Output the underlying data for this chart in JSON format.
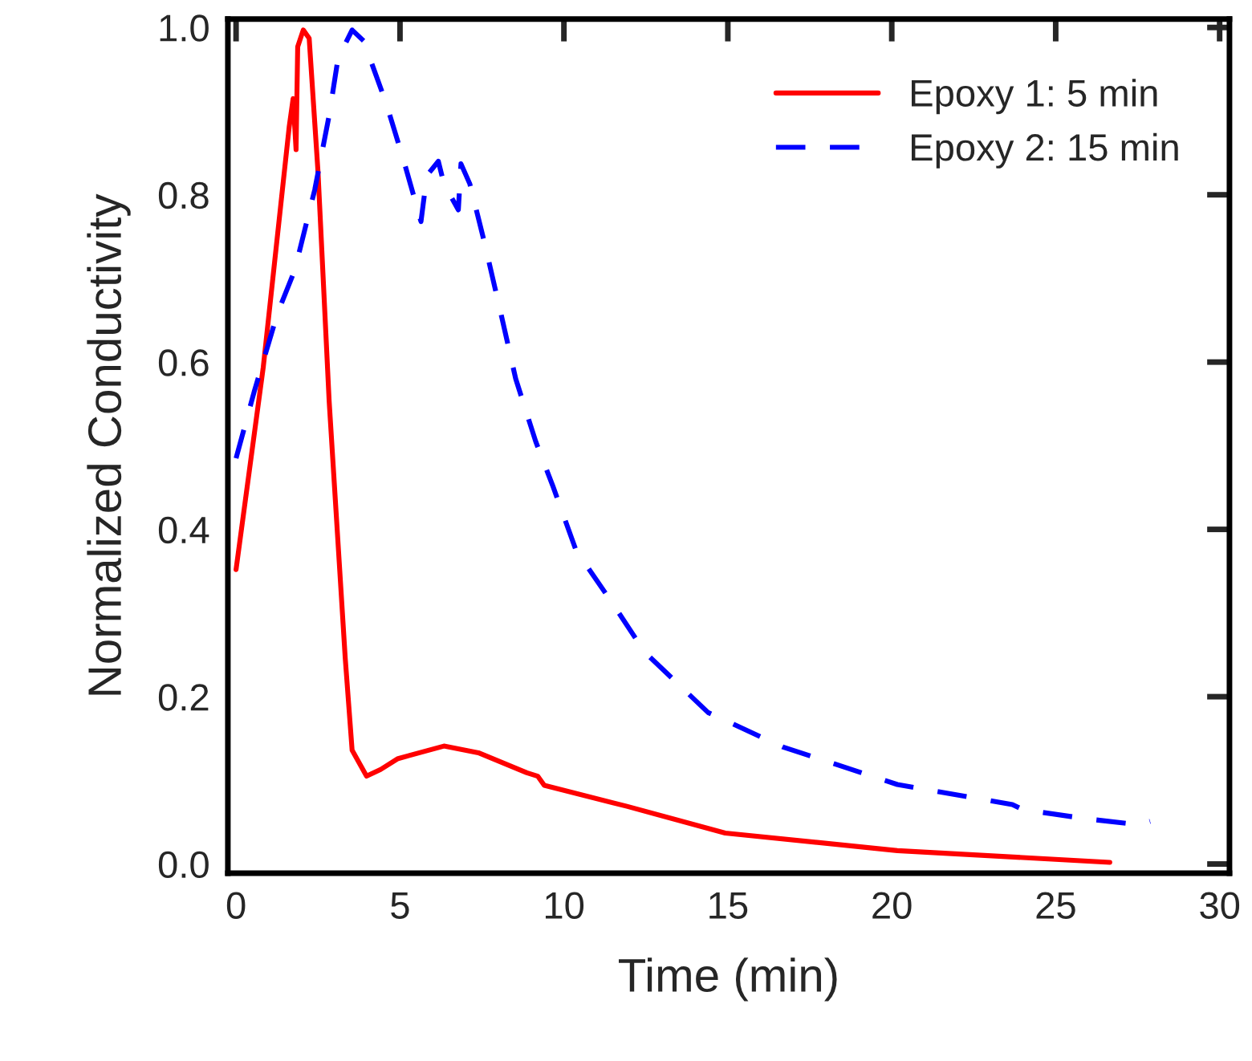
{
  "chart_data": {
    "type": "line",
    "xlabel": "Time (min)",
    "ylabel": "Normalized Conductivity",
    "xlim": [
      -0.25,
      30.3
    ],
    "ylim": [
      -0.011,
      1.01
    ],
    "xticks": [
      0,
      5,
      10,
      15,
      20,
      25,
      30
    ],
    "yticks": [
      {
        "value": 0.0,
        "label": "0.0"
      },
      0.2,
      0.4,
      0.6,
      0.8,
      {
        "value": 1.0,
        "label": "1.0"
      }
    ],
    "grid": false,
    "legend": "top right",
    "marker": "none",
    "series": [
      {
        "name": "Epoxy 1: 5 min",
        "color": "#ff0000",
        "line_style": "solid",
        "x": [
          0,
          0.83,
          1.62,
          1.74,
          1.83,
          1.88,
          2.05,
          2.23,
          2.5,
          2.84,
          3.33,
          3.54,
          3.98,
          4.41,
          4.94,
          6.34,
          7.39,
          8.87,
          9.2,
          9.4,
          11.92,
          14.92,
          20.17,
          26.65
        ],
        "values": [
          0.352,
          0.594,
          0.881,
          0.915,
          0.854,
          0.977,
          0.997,
          0.987,
          0.827,
          0.553,
          0.246,
          0.136,
          0.105,
          0.113,
          0.126,
          0.141,
          0.133,
          0.109,
          0.105,
          0.094,
          0.069,
          0.037,
          0.016,
          0.002
        ]
      },
      {
        "name": "Epoxy 2: 15 min",
        "color": "#0000ff",
        "line_style": "dashed",
        "x": [
          0,
          0.57,
          1.27,
          1.79,
          2.4,
          2.84,
          3.11,
          3.54,
          3.89,
          4.59,
          5.12,
          5.64,
          5.82,
          6.17,
          6.34,
          6.78,
          6.86,
          7.13,
          7.57,
          8.09,
          8.53,
          9.14,
          9.67,
          10.37,
          11.51,
          12.47,
          14.4,
          16.67,
          20.17,
          23.68,
          24.0,
          25.95,
          27.53,
          27.88
        ],
        "values": [
          0.485,
          0.567,
          0.659,
          0.71,
          0.806,
          0.895,
          0.963,
          0.997,
          0.984,
          0.908,
          0.84,
          0.768,
          0.823,
          0.84,
          0.813,
          0.782,
          0.837,
          0.813,
          0.744,
          0.656,
          0.58,
          0.505,
          0.451,
          0.375,
          0.31,
          0.253,
          0.181,
          0.14,
          0.095,
          0.071,
          0.065,
          0.054,
          0.047,
          0.051
        ]
      }
    ]
  }
}
